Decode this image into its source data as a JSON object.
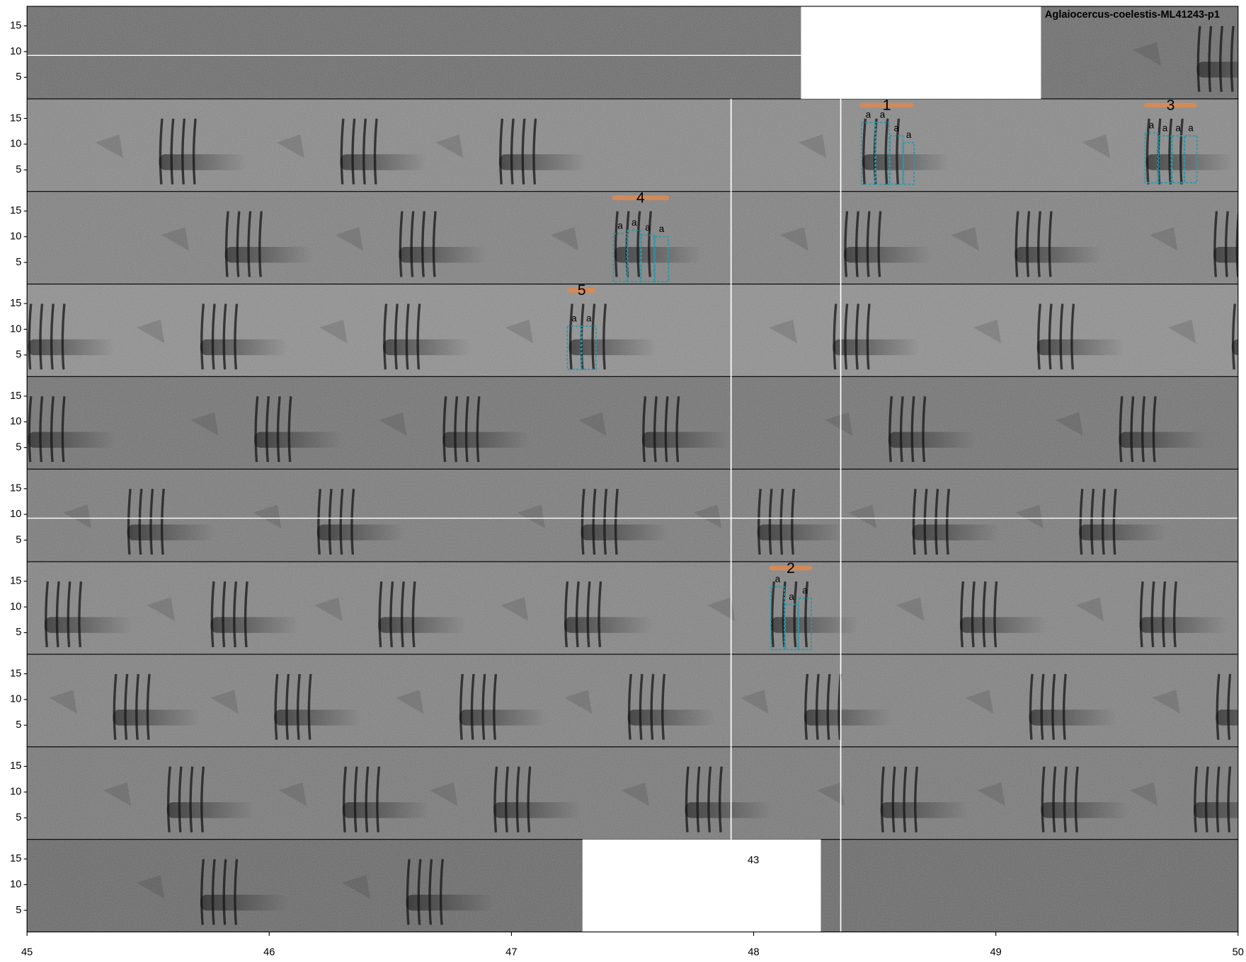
{
  "chart_data": {
    "type": "spectrogram",
    "title": "Aglaiocercus-coelestis-ML41243-p1",
    "ylim": [
      0.8,
      18.8
    ],
    "yticks": [
      5,
      10,
      15
    ],
    "xticks": [
      45,
      46,
      47,
      48,
      49,
      50
    ],
    "panels": [
      {
        "xlim": [
          0,
          5
        ]
      },
      {
        "xlim": [
          5,
          10
        ]
      },
      {
        "xlim": [
          10,
          15
        ]
      },
      {
        "xlim": [
          15,
          20
        ]
      },
      {
        "xlim": [
          20,
          25
        ]
      },
      {
        "xlim": [
          25,
          30
        ]
      },
      {
        "xlim": [
          30,
          35
        ]
      },
      {
        "xlim": [
          35,
          40
        ]
      },
      {
        "xlim": [
          40,
          45
        ]
      },
      {
        "xlim": [
          45,
          50
        ]
      }
    ],
    "overlay_text": "43",
    "selections": [
      {
        "label": "1",
        "start": 8.438,
        "end": 8.661,
        "color": "#d98a52",
        "syllables": [
          {
            "label": "a",
            "start": 8.445,
            "end": 8.501,
            "fmin": 2.2,
            "fmax": 14.2
          },
          {
            "label": "a",
            "start": 8.504,
            "end": 8.56,
            "fmin": 2.2,
            "fmax": 14.2
          },
          {
            "label": "a",
            "start": 8.563,
            "end": 8.616,
            "fmin": 2.2,
            "fmax": 11.6
          },
          {
            "label": "a",
            "start": 8.619,
            "end": 8.662,
            "fmin": 2.2,
            "fmax": 10.3
          }
        ]
      },
      {
        "label": "2",
        "start": 33.064,
        "end": 33.242,
        "color": "#d98a52",
        "syllables": [
          {
            "label": "a",
            "start": 33.071,
            "end": 33.127,
            "fmin": 1.7,
            "fmax": 13.9
          },
          {
            "label": "a",
            "start": 33.13,
            "end": 33.183,
            "fmin": 1.7,
            "fmax": 10.5
          },
          {
            "label": "a",
            "start": 33.186,
            "end": 33.238,
            "fmin": 1.7,
            "fmax": 11.7
          }
        ]
      },
      {
        "label": "3",
        "start": 9.613,
        "end": 9.83,
        "color": "#d98a52",
        "syllables": [
          {
            "label": "a",
            "start": 9.616,
            "end": 9.669,
            "fmin": 2.5,
            "fmax": 12.2
          },
          {
            "label": "a",
            "start": 9.672,
            "end": 9.724,
            "fmin": 2.5,
            "fmax": 11.6
          },
          {
            "label": "a",
            "start": 9.728,
            "end": 9.777,
            "fmin": 2.5,
            "fmax": 11.6
          },
          {
            "label": "a",
            "start": 9.78,
            "end": 9.83,
            "fmin": 2.5,
            "fmax": 11.6
          }
        ]
      },
      {
        "label": "4",
        "start": 12.415,
        "end": 12.651,
        "color": "#d98a52",
        "syllables": [
          {
            "label": "a",
            "start": 12.421,
            "end": 12.477,
            "fmin": 1.25,
            "fmax": 10.6
          },
          {
            "label": "a",
            "start": 12.48,
            "end": 12.533,
            "fmin": 1.25,
            "fmax": 11.25
          },
          {
            "label": "a",
            "start": 12.536,
            "end": 12.589,
            "fmin": 1.25,
            "fmax": 10.3
          },
          {
            "label": "a",
            "start": 12.592,
            "end": 12.648,
            "fmin": 1.25,
            "fmax": 10.0
          }
        ]
      },
      {
        "label": "5",
        "start": 17.231,
        "end": 17.349,
        "color": "#d98a52",
        "syllables": [
          {
            "label": "a",
            "start": 17.231,
            "end": 17.287,
            "fmin": 2.2,
            "fmax": 10.6
          },
          {
            "label": "a",
            "start": 17.29,
            "end": 17.349,
            "fmin": 2.2,
            "fmax": 10.6
          }
        ]
      }
    ],
    "box_color": "#2a98a8"
  }
}
